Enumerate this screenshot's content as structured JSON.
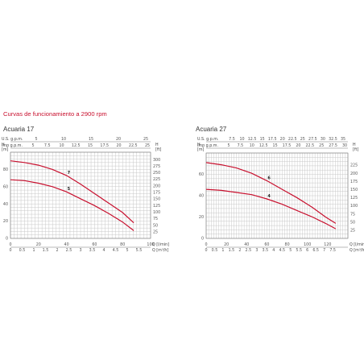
{
  "page_title": "Curvas de funcionamiento a 2900 rpm",
  "chart_data": [
    {
      "type": "line",
      "title": "Acuaria 17",
      "xlabel": "Q [l/min]",
      "xlabel2": "Q [m³/h]",
      "ylabel_left": "H [m]",
      "ylabel_right": "H [ft]",
      "xlim": [
        0,
        100
      ],
      "ylim": [
        0,
        100
      ],
      "grid": true,
      "x_ticks": [
        "0",
        "20",
        "40",
        "60",
        "80",
        "100"
      ],
      "x2_ticks": [
        "0",
        "0.5",
        "1",
        "1.5",
        "2",
        "2.5",
        "3",
        "3.5",
        "4",
        "4.5",
        "5",
        "5.5"
      ],
      "us_label": "U.S. g.p.m.",
      "us_ticks": [
        "5",
        "10",
        "15",
        "20",
        "25"
      ],
      "imp_label": "Imp g.p.m.",
      "imp_ticks": [
        "5",
        "7.5",
        "10",
        "12.5",
        "15",
        "17.5",
        "20",
        "22.5",
        "25"
      ],
      "y_ticks": [
        "0",
        "20",
        "40",
        "60",
        "80"
      ],
      "y2_ticks": [
        "25",
        "50",
        "75",
        "100",
        "125",
        "150",
        "175",
        "200",
        "225",
        "250",
        "275",
        "300"
      ],
      "series": [
        {
          "name": "7",
          "x": [
            0,
            10,
            20,
            30,
            40,
            50,
            60,
            70,
            80,
            88
          ],
          "y": [
            90,
            88,
            85,
            80,
            73,
            63,
            52,
            41,
            30,
            18
          ]
        },
        {
          "name": "5",
          "x": [
            0,
            10,
            20,
            30,
            40,
            50,
            60,
            70,
            80,
            88
          ],
          "y": [
            68,
            67,
            64,
            60,
            54,
            46,
            38,
            29,
            19,
            9
          ]
        }
      ]
    },
    {
      "type": "line",
      "title": "Acuaria 27",
      "xlabel": "Q [l/min]",
      "xlabel2": "Q [m³/h]",
      "ylabel_left": "H [m]",
      "ylabel_right": "H [ft]",
      "xlim": [
        0,
        140
      ],
      "ylim": [
        0,
        80
      ],
      "grid": true,
      "x_ticks": [
        "0",
        "20",
        "40",
        "60",
        "80",
        "100",
        "120"
      ],
      "x2_ticks": [
        "0",
        "0.5",
        "1",
        "1.5",
        "2",
        "2.5",
        "3",
        "3.5",
        "4",
        "4.5",
        "5",
        "5.5",
        "6",
        "6.5",
        "7",
        "7.5"
      ],
      "us_label": "U.S. g.p.m.",
      "us_ticks": [
        "7.5",
        "10",
        "12.5",
        "15",
        "17.5",
        "20",
        "22.5",
        "25",
        "27.5",
        "30",
        "32.5",
        "35"
      ],
      "imp_label": "Imp g.p.m.",
      "imp_ticks": [
        "5",
        "7.5",
        "10",
        "12.5",
        "15",
        "17.5",
        "20",
        "22.5",
        "25",
        "27.5",
        "30"
      ],
      "y_ticks": [
        "0",
        "20",
        "40",
        "60"
      ],
      "y2_ticks": [
        "25",
        "50",
        "75",
        "100",
        "125",
        "150",
        "175",
        "200",
        "225"
      ],
      "series": [
        {
          "name": "6",
          "x": [
            0,
            15,
            30,
            45,
            60,
            75,
            90,
            105,
            118,
            128
          ],
          "y": [
            71,
            69,
            66,
            61,
            54,
            46,
            38,
            29,
            20,
            14
          ]
        },
        {
          "name": "4",
          "x": [
            0,
            15,
            30,
            45,
            60,
            75,
            90,
            105,
            118,
            128
          ],
          "y": [
            46,
            45,
            43,
            41,
            37,
            32,
            26,
            20,
            14,
            9
          ]
        }
      ]
    }
  ]
}
